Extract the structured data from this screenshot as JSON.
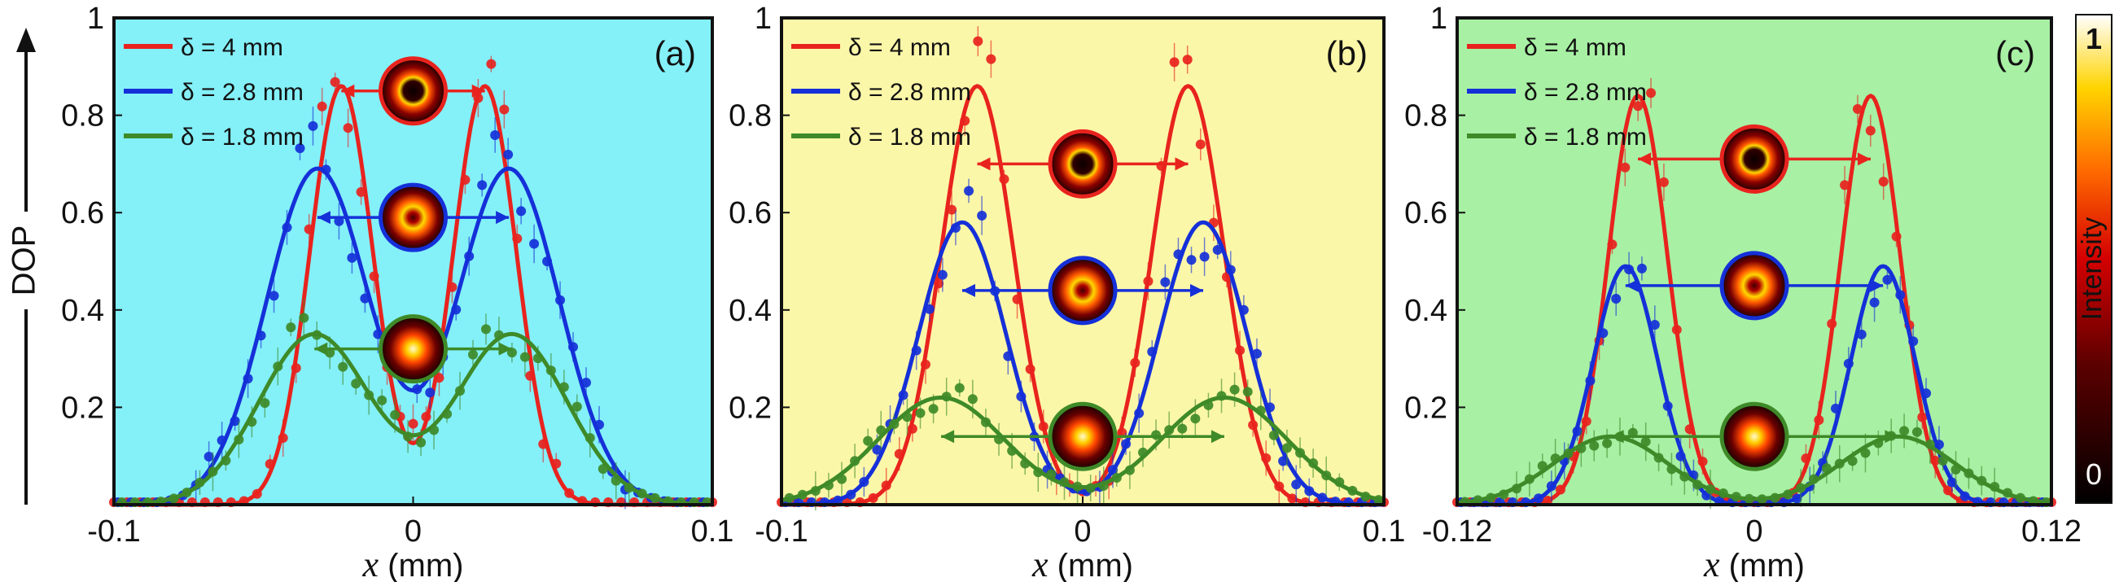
{
  "figure": {
    "ylabel": "DOP",
    "colorbar": {
      "label": "Intensity",
      "max_label": "1",
      "min_label": "0"
    }
  },
  "chart_data": [
    {
      "type": "line",
      "panel_label": "(a)",
      "background": "#84F0F8",
      "xlabel_var": "x",
      "xlabel_unit": " (mm)",
      "xlim": [
        -0.1,
        0.1
      ],
      "ylim": [
        0,
        1
      ],
      "xticks": [
        "-0.1",
        "0",
        "0.1"
      ],
      "yticks": [
        "0.2",
        "0.4",
        "0.6",
        "0.8",
        "1"
      ],
      "series": [
        {
          "name": "δ = 4 mm",
          "color": "#E8231E",
          "peak": 0.86,
          "center": 0.024,
          "sigma": 0.0105,
          "insetY": 0.85
        },
        {
          "name": "δ = 2.8 mm",
          "color": "#1530D8",
          "peak": 0.69,
          "center": 0.032,
          "sigma": 0.017,
          "insetY": 0.59
        },
        {
          "name": "δ = 1.8 mm",
          "color": "#3E8A28",
          "peak": 0.35,
          "center": 0.033,
          "sigma": 0.0185,
          "insetY": 0.32
        }
      ]
    },
    {
      "type": "line",
      "panel_label": "(b)",
      "background": "#FBF7A8",
      "xlabel_var": "x",
      "xlabel_unit": " (mm)",
      "xlim": [
        -0.1,
        0.1
      ],
      "ylim": [
        0,
        1
      ],
      "xticks": [
        "-0.1",
        "0",
        "0.1"
      ],
      "yticks": [
        "0.2",
        "0.4",
        "0.6",
        "0.8",
        "1"
      ],
      "series": [
        {
          "name": "δ = 4 mm",
          "color": "#E8231E",
          "peak": 0.86,
          "center": 0.035,
          "sigma": 0.012,
          "insetY": 0.7
        },
        {
          "name": "δ = 2.8 mm",
          "color": "#1530D8",
          "peak": 0.58,
          "center": 0.04,
          "sigma": 0.0145,
          "insetY": 0.44
        },
        {
          "name": "δ = 1.8 mm",
          "color": "#3E8A28",
          "peak": 0.22,
          "center": 0.047,
          "sigma": 0.021,
          "insetY": 0.14
        }
      ]
    },
    {
      "type": "line",
      "panel_label": "(c)",
      "background": "#A8F0A4",
      "xlabel_var": "x",
      "xlabel_unit": " (mm)",
      "xlim": [
        -0.12,
        0.12
      ],
      "ylim": [
        0,
        1
      ],
      "xticks": [
        "-0.12",
        "0",
        "0.12"
      ],
      "yticks": [
        "0.2",
        "0.4",
        "0.6",
        "0.8",
        "1"
      ],
      "series": [
        {
          "name": "δ = 4 mm",
          "color": "#E8231E",
          "peak": 0.84,
          "center": 0.047,
          "sigma": 0.012,
          "insetY": 0.71
        },
        {
          "name": "δ = 2.8 mm",
          "color": "#1530D8",
          "peak": 0.49,
          "center": 0.052,
          "sigma": 0.013,
          "insetY": 0.45
        },
        {
          "name": "δ = 1.8 mm",
          "color": "#3E8A28",
          "peak": 0.14,
          "center": 0.058,
          "sigma": 0.023,
          "insetY": 0.14
        }
      ]
    }
  ]
}
